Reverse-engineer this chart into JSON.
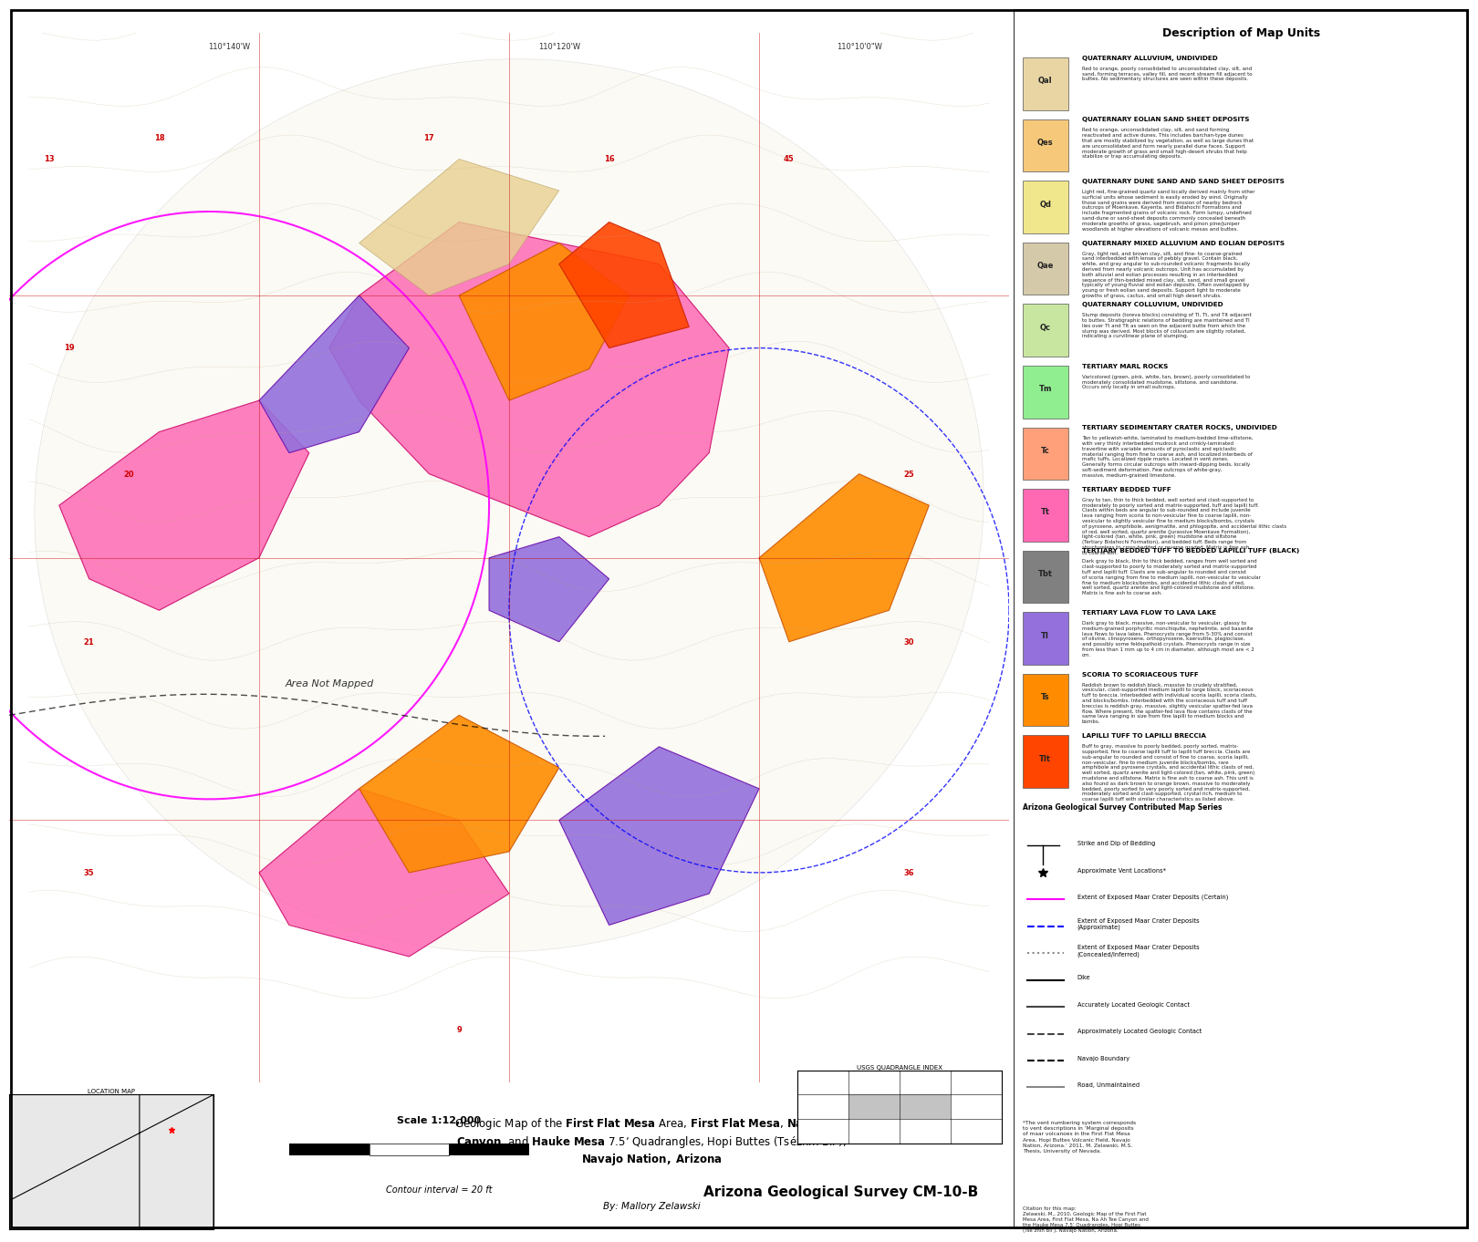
{
  "title": "Geologic Map of the First Flat Mesa Area, First Flat Mesa, Na Ah Tee\nCanyon, and Hauke Mesa 7.5’ Quadrangles, Hopi Buttes (Tsézhin Bii’),\nNavajo Nation, Arizona",
  "subtitle": "By: Mallory Zelawski",
  "agency": "Arizona Geological Survey CM-10-B",
  "scale_text": "Scale 1:12,000",
  "contour_text": "Contour interval = 20 ft",
  "usgs_text": "USGS QUADRANGLE INDEX",
  "legend_title": "Description of Map Units",
  "map_bg": "#f5f0e8",
  "legend_bg": "#ffffff",
  "legend_units": [
    {
      "code": "Qal",
      "color": "#e8d5a3",
      "title": "QUATERNARY ALLUVIUM, UNDIVIDED",
      "desc": "Red to orange, poorly consolidated to unconsolidated clay, silt, and\nsand, forming terraces, valley fill, and recent stream fill adjacent to\nbuttes. No sedimentary structures are seen within these deposits."
    },
    {
      "code": "Qes",
      "color": "#f5c87a",
      "title": "QUATERNARY EOLIAN SAND SHEET DEPOSITS",
      "desc": "Red to orange, unconsolidated clay, silt, and sand forming\nreactivated and active dunes. This includes barchan-type dunes\nthat are mostly stabilized by vegetation, as well as large dunes that\nare unconsolidated and form nearly parallel dune faces. Support\nmoderate growth of grass and small high-desert shrubs that help\nstabilize or trap accumulating deposits."
    },
    {
      "code": "Qd",
      "color": "#f0e68c",
      "title": "QUATERNARY DUNE SAND AND SAND SHEET DEPOSITS",
      "desc": "Light red, fine-grained quartz sand locally derived mainly from other\nsurficial units whose sediment is easily eroded by wind. Originally\nthose sand grains were derived from erosion of nearby bedrock\noutcrops of Moenkave, Kayenta, and Bidahochi Formations and\ninclude fragmented grains of volcanic rock. Form lumpy, undefined\nsand-dune or sand-sheet deposits commonly concealed beneath\nmoderate growths of grass, sagebrush, and pinon pine/juniper\nwoodlands at higher elevations of volcanic mesas and buttes."
    },
    {
      "code": "Qae",
      "color": "#d4c9a8",
      "title": "QUATERNARY MIXED ALLUVIUM AND EOLIAN DEPOSITS",
      "desc": "Gray, light red, and brown clay, silt, and fine- to coarse-grained\nsand interbedded with lenses of pebbly gravel. Contain black,\nwhite, and gray angular to sub-rounded volcanic fragments locally\nderived from nearly volcanic outcrops. Unit has accumulated by\nboth alluvial and eolian processes resulting in an interbedded\nsequence of thin-bedded mixed clay, silt, sand, and small gravel\ntypically of young fluvial and eolian deposits. Often overlapped by\nyoung or fresh eolian sand deposits. Support light to moderate\ngrowths of grass, cactus, and small high desert shrubs."
    },
    {
      "code": "Qc",
      "color": "#c8e6a0",
      "title": "QUATERNARY COLLUVIUM, UNDIVIDED",
      "desc": "Slump deposits (toreva blocks) consisting of Tl, Tt, and Tlt adjacent\nto buttes. Stratigraphic relations of bedding are maintained and Tl\nlies over Tt and Tlt as seen on the adjacent butte from which the\nslump was derived. Most blocks of colluvium are slightly rotated,\nindicating a curvilinear plane of slumping."
    },
    {
      "code": "Tm",
      "color": "#90ee90",
      "title": "TERTIARY MARL ROCKS",
      "desc": "Varicolored (green, pink, white, tan, brown), poorly consolidated to\nmoderately consolidated mudstone, siltstone, and sandstone.\nOccurs only locally in small outcrops."
    },
    {
      "code": "Tc",
      "color": "#ffa07a",
      "title": "TERTIARY SEDIMENTARY CRATER ROCKS, UNDIVIDED",
      "desc": "Tan to yellowish-white, laminated to medium-bedded lime-siltstone,\nwith very thinly interbedded mudrock and crinkly-laminated\ntravertine with variable amounts of pyroclastic and epiclastic\nmaterial ranging from fine to coarse ash, and localized interbeds of\nmafic tuffs. Localized ripple marks. Located in vent zones.\nGenerally forms circular outcrops with inward-dipping beds, locally\nsoft-sediment deformation. Few outcrops of white-gray,\nmassive, medium-grained limestone."
    },
    {
      "code": "Tt",
      "color": "#ff69b4",
      "title": "TERTIARY BEDDED TUFF",
      "desc": "Gray to tan, thin to thick bedded, well sorted and clast-supported to\nmoderately to poorly sorted and matrix-supported, tuff and lapilli tuff.\nClasts within beds are angular to sub-rounded and include juvenile\nlava ranging from scoria to non-vesicular fine to coarse lapilli, non-\nvesicular to slightly vesicular fine to medium blocks/bombs, crystals\nof pyroxene, amphibole, aenigmatite, and phlogopite, and accidental lithic clasts\nof red, well sorted, quartz arenite (Jurassive Moenkave Formation),\nlight-colored (tan, white, pink, green) mudstone and siltstone\n(Tertiary Bidahochi Formation), and bedded tuff. Beds range from\nstructureless to cross-bedded or reverse graded. Matrix is fine ash\nto coarse ash."
    },
    {
      "code": "Tbt",
      "color": "#808080",
      "title": "TERTIARY BEDDED TUFF TO BEDDED LAPILLI TUFF (BLACK)",
      "desc": "Dark gray to black, thin to thick bedded, ranges from well sorted and\nclast-supported to poorly to moderately sorted and matrix-supported\ntuff and lapilli tuff. Clasts are sub-angular to rounded and consist\nof scoria ranging from fine to medium lapilli, non-vesicular to vesicular\nfine to medium blocks/bombs, and accidental lithic clasts of red,\nwell sorted, quartz arenite and light-colored mudstone and siltstone.\nMatrix is fine ash to coarse ash."
    },
    {
      "code": "Tl",
      "color": "#9370db",
      "title": "TERTIARY LAVA FLOW TO LAVA LAKE",
      "desc": "Dark gray to black, massive, non-vesicular to vesicular, glassy to\nmedium-grained porphyritic monchiquite, nephelinite, and basanite\nlava flows to lava lakes. Phenocrysts range from 5-30% and consist\nof olivine, clinopyroxene, orthopyroxene, kaersutite, plagioclase,\nand possibly some feldspathoid crystals. Phenocrysts range in size\nfrom less than 1 mm up to 4 cm in diameter, although most are < 2\ncm."
    },
    {
      "code": "Ts",
      "color": "#ff8c00",
      "title": "SCORIA TO SCORIACEOUS TUFF",
      "desc": "Reddish brown to reddish black, massive to crudely stratified,\nvesicular, clast-supported medium lapilli to large block, scoriaceous\ntuff to breccia. Interbedded with individual scoria lapilli, scoria clasts,\nand blocks/bombs. Interbedded with the scoriaceous tuff and tuff\nbreccias is reddish gray, massive, slightly vesicular spatter-fed lava\nflow. Where present, the spatter-fed lava flow contains clasts of the\nsame lava ranging in size from fine lapilli to medium blocks and\nbombs."
    },
    {
      "code": "Tlt",
      "color": "#ff4500",
      "title": "LAPILLI TUFF TO LAPILLI BRECCIA",
      "desc": "Buff to gray, massive to poorly bedded, poorly sorted, matrix-\nsupported, fine to coarse lapilli tuff to lapilli tuff breccia. Clasts are\nsub-angular to rounded and consist of fine to coarse, scoria lapilli,\nnon-vesicular, fine to medium juvenile blocks/bombs, rare\namphibole and pyroxene crystals, and accidental lithic clasts of red,\nwell sorted, quartz arenite and light-colored (tan, white, pink, green)\nmudstone and siltstone. Matrix is fine ash to coarse ash. This unit is\nalso found as dark brown to orange brown, massive to moderately\nbedded, poorly sorted to very poorly sorted and matrix-supported,\nmoderately sorted and clast-supported, crystal rich, medium to\ncoarse lapilli tuff with similar characteristics as listed above."
    }
  ],
  "symbol_entries": [
    {
      "symbol": "strike_dip",
      "label": "Strike and Dip of Bedding"
    },
    {
      "symbol": "vent",
      "label": "Approximate Vent Locations*"
    },
    {
      "symbol": "solid_line",
      "label": "Extent of Exposed Maar Crater Deposits (Certain)",
      "color": "#ff00ff"
    },
    {
      "symbol": "dashed_line",
      "label": "Extent of Exposed Maar Crater Deposits\n(Approximate)",
      "color": "#0000ff"
    },
    {
      "symbol": "dotted_line",
      "label": "Extent of Exposed Maar Crater Deposits\n(Concealed/Inferred)",
      "color": "#666666"
    },
    {
      "symbol": "solid_black",
      "label": "Dike",
      "color": "#000000"
    },
    {
      "symbol": "solid_gray",
      "label": "Accurately Located Geologic Contact",
      "color": "#666666"
    },
    {
      "symbol": "dashed_gray",
      "label": "Approximately Located Geologic Contact",
      "color": "#666666"
    },
    {
      "symbol": "dashed_black",
      "label": "Navajo Boundary",
      "color": "#000000"
    },
    {
      "symbol": "double_line",
      "label": "Road, Unmaintained",
      "color": "#888888"
    }
  ],
  "contributed_series_text": "Arizona Geological Survey Contributed Map Series",
  "footnote_text": "*The vent numbering system corresponds\nto vent descriptions in ‘Marginal deposits\nof maar volcanoes in the First Flat Mesa\nArea, Hopi Buttes Volcanic Field, Navajo\nNation, Arizona.’ 2011, M. Zelawski, M.S.\nThesis, University of Nevada.",
  "citation_text": "Citation for this map:\nZelawski, M., 2010, Geologic Map of the First Flat\nMesa Area, First Flat Mesa, Na Ah Tee Canyon and\nthe Hauke Mesa 7.5’ Quadrangles, Hopi Buttes\n(Tse’zhin Bii’), Navajo Nation, Arizona.",
  "main_title": "Geologic Map of the",
  "location_map_label": "LOCATION MAP",
  "border_color": "#000000",
  "map_colors": {
    "background": "#f0ebe0",
    "contour": "#c8a882",
    "pink_zone": "#ff69b4",
    "purple_zone": "#9b59b6",
    "orange_zone": "#ff8c00",
    "red_zone": "#ff4500",
    "tan_zone": "#d4c476",
    "green_zone": "#90ee90",
    "yellow_zone": "#f5f0c0"
  }
}
